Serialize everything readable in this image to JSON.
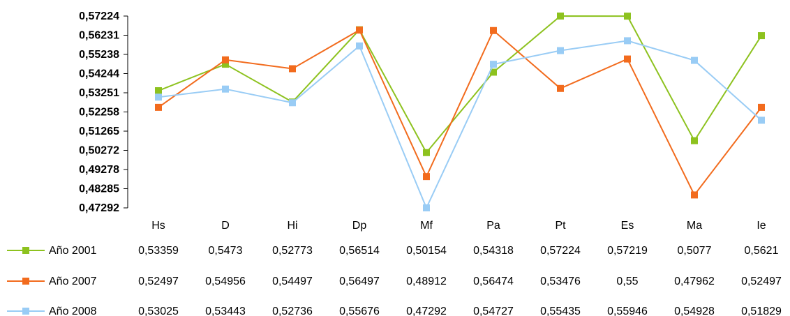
{
  "chart_data": {
    "type": "line",
    "categories": [
      "Hs",
      "D",
      "Hi",
      "Dp",
      "Mf",
      "Pa",
      "Pt",
      "Es",
      "Ma",
      "Ie"
    ],
    "y_ticks": [
      "0,57224",
      "0,56231",
      "0,55238",
      "0,54244",
      "0,53251",
      "0,52258",
      "0,51265",
      "0,50272",
      "0,49278",
      "0,48285",
      "0,47292"
    ],
    "ylim": [
      0.47292,
      0.57224
    ],
    "grid": false,
    "legend": "bottom data table",
    "series": [
      {
        "name": "Año 2001",
        "color": "#8DC21F",
        "values": [
          0.53359,
          0.5473,
          0.52773,
          0.56514,
          0.50154,
          0.54318,
          0.57224,
          0.57219,
          0.5077,
          0.5621
        ],
        "labels": [
          "0,53359",
          "0,5473",
          "0,52773",
          "0,56514",
          "0,50154",
          "0,54318",
          "0,57224",
          "0,57219",
          "0,5077",
          "0,5621"
        ]
      },
      {
        "name": "Año 2007",
        "color": "#F26B1D",
        "values": [
          0.52497,
          0.54956,
          0.54497,
          0.56497,
          0.48912,
          0.56474,
          0.53476,
          0.55,
          0.47962,
          0.52497
        ],
        "labels": [
          "0,52497",
          "0,54956",
          "0,54497",
          "0,56497",
          "0,48912",
          "0,56474",
          "0,53476",
          "0,55",
          "0,47962",
          "0,52497"
        ]
      },
      {
        "name": "Año 2008",
        "color": "#99CCF5",
        "values": [
          0.53025,
          0.53443,
          0.52736,
          0.55676,
          0.47292,
          0.54727,
          0.55435,
          0.55946,
          0.54928,
          0.51829
        ],
        "labels": [
          "0,53025",
          "0,53443",
          "0,52736",
          "0,55676",
          "0,47292",
          "0,54727",
          "0,55435",
          "0,55946",
          "0,54928",
          "0,51829"
        ]
      }
    ]
  }
}
